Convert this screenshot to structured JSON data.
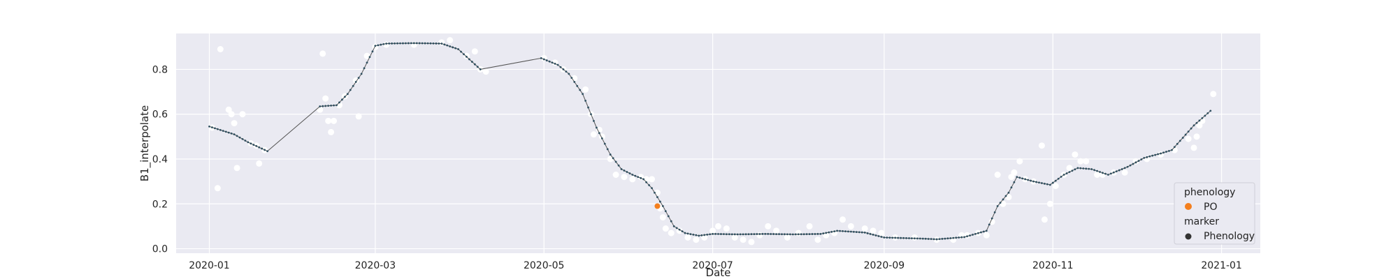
{
  "chart_data": {
    "type": "scatter",
    "title": "",
    "xlabel": "Date",
    "ylabel": "B1_interpolate",
    "x_type": "date",
    "xlim": [
      "2019-12-20",
      "2021-01-15"
    ],
    "ylim": [
      -0.02,
      0.96
    ],
    "grid": true,
    "x_ticks": [
      "2020-01-01",
      "2020-03-01",
      "2020-05-01",
      "2020-07-01",
      "2020-09-01",
      "2020-11-01",
      "2021-01-01"
    ],
    "x_tick_labels": [
      "2020-01",
      "2020-03",
      "2020-05",
      "2020-07",
      "2020-09",
      "2020-11",
      "2021-01"
    ],
    "y_ticks": [
      0.0,
      0.2,
      0.4,
      0.6,
      0.8
    ],
    "y_tick_labels": [
      "0.0",
      "0.2",
      "0.4",
      "0.6",
      "0.8"
    ],
    "series": [
      {
        "kind": "observations",
        "color": "#ffffff",
        "points": [
          [
            "2020-01-02",
            0.54
          ],
          [
            "2020-01-04",
            0.27
          ],
          [
            "2020-01-05",
            0.89
          ],
          [
            "2020-01-08",
            0.62
          ],
          [
            "2020-01-09",
            0.6
          ],
          [
            "2020-01-10",
            0.56
          ],
          [
            "2020-01-11",
            0.36
          ],
          [
            "2020-01-13",
            0.6
          ],
          [
            "2020-01-16",
            0.47
          ],
          [
            "2020-01-18",
            0.46
          ],
          [
            "2020-01-19",
            0.38
          ],
          [
            "2020-01-21",
            0.44
          ],
          [
            "2020-02-10",
            0.62
          ],
          [
            "2020-02-11",
            0.87
          ],
          [
            "2020-02-12",
            0.67
          ],
          [
            "2020-02-13",
            0.57
          ],
          [
            "2020-02-14",
            0.52
          ],
          [
            "2020-02-15",
            0.57
          ],
          [
            "2020-02-17",
            0.64
          ],
          [
            "2020-02-19",
            0.68
          ],
          [
            "2020-02-23",
            0.75
          ],
          [
            "2020-02-24",
            0.59
          ],
          [
            "2020-02-27",
            0.86
          ],
          [
            "2020-03-01",
            0.9
          ],
          [
            "2020-03-05",
            0.91
          ],
          [
            "2020-03-15",
            0.91
          ],
          [
            "2020-03-25",
            0.92
          ],
          [
            "2020-03-28",
            0.93
          ],
          [
            "2020-04-03",
            0.86
          ],
          [
            "2020-04-06",
            0.88
          ],
          [
            "2020-04-08",
            0.8
          ],
          [
            "2020-04-10",
            0.79
          ],
          [
            "2020-05-01",
            0.85
          ],
          [
            "2020-05-05",
            0.83
          ],
          [
            "2020-05-08",
            0.8
          ],
          [
            "2020-05-12",
            0.76
          ],
          [
            "2020-05-16",
            0.71
          ],
          [
            "2020-05-18",
            0.6
          ],
          [
            "2020-05-19",
            0.51
          ],
          [
            "2020-05-21",
            0.53
          ],
          [
            "2020-05-22",
            0.5
          ],
          [
            "2020-05-25",
            0.4
          ],
          [
            "2020-05-27",
            0.33
          ],
          [
            "2020-05-30",
            0.32
          ],
          [
            "2020-06-02",
            0.31
          ],
          [
            "2020-06-05",
            0.32
          ],
          [
            "2020-06-07",
            0.31
          ],
          [
            "2020-06-09",
            0.31
          ],
          [
            "2020-06-11",
            0.25
          ],
          [
            "2020-06-12",
            0.18
          ],
          [
            "2020-06-13",
            0.14
          ],
          [
            "2020-06-14",
            0.09
          ],
          [
            "2020-06-16",
            0.07
          ],
          [
            "2020-06-19",
            0.08
          ],
          [
            "2020-06-22",
            0.05
          ],
          [
            "2020-06-25",
            0.04
          ],
          [
            "2020-06-28",
            0.05
          ],
          [
            "2020-07-01",
            0.08
          ],
          [
            "2020-07-03",
            0.1
          ],
          [
            "2020-07-06",
            0.09
          ],
          [
            "2020-07-09",
            0.05
          ],
          [
            "2020-07-12",
            0.04
          ],
          [
            "2020-07-15",
            0.03
          ],
          [
            "2020-07-18",
            0.06
          ],
          [
            "2020-07-21",
            0.1
          ],
          [
            "2020-07-24",
            0.08
          ],
          [
            "2020-07-28",
            0.05
          ],
          [
            "2020-08-01",
            0.07
          ],
          [
            "2020-08-05",
            0.1
          ],
          [
            "2020-08-08",
            0.04
          ],
          [
            "2020-08-11",
            0.06
          ],
          [
            "2020-08-14",
            0.07
          ],
          [
            "2020-08-17",
            0.13
          ],
          [
            "2020-08-20",
            0.1
          ],
          [
            "2020-08-25",
            0.09
          ],
          [
            "2020-08-28",
            0.08
          ],
          [
            "2020-08-31",
            0.07
          ],
          [
            "2020-09-05",
            0.05
          ],
          [
            "2020-09-12",
            0.05
          ],
          [
            "2020-09-20",
            0.04
          ],
          [
            "2020-09-26",
            0.04
          ],
          [
            "2020-09-29",
            0.06
          ],
          [
            "2020-10-01",
            0.06
          ],
          [
            "2020-10-05",
            0.07
          ],
          [
            "2020-10-08",
            0.06
          ],
          [
            "2020-10-10",
            0.12
          ],
          [
            "2020-10-12",
            0.33
          ],
          [
            "2020-10-14",
            0.2
          ],
          [
            "2020-10-16",
            0.23
          ],
          [
            "2020-10-17",
            0.32
          ],
          [
            "2020-10-18",
            0.34
          ],
          [
            "2020-10-20",
            0.39
          ],
          [
            "2020-10-22",
            0.31
          ],
          [
            "2020-10-25",
            0.3
          ],
          [
            "2020-10-28",
            0.46
          ],
          [
            "2020-10-29",
            0.13
          ],
          [
            "2020-10-31",
            0.2
          ],
          [
            "2020-11-02",
            0.28
          ],
          [
            "2020-11-05",
            0.33
          ],
          [
            "2020-11-07",
            0.36
          ],
          [
            "2020-11-09",
            0.42
          ],
          [
            "2020-11-11",
            0.39
          ],
          [
            "2020-11-13",
            0.39
          ],
          [
            "2020-11-17",
            0.33
          ],
          [
            "2020-11-19",
            0.33
          ],
          [
            "2020-11-23",
            0.34
          ],
          [
            "2020-11-27",
            0.34
          ],
          [
            "2020-12-01",
            0.39
          ],
          [
            "2020-12-05",
            0.4
          ],
          [
            "2020-12-10",
            0.42
          ],
          [
            "2020-12-15",
            0.44
          ],
          [
            "2020-12-20",
            0.49
          ],
          [
            "2020-12-22",
            0.45
          ],
          [
            "2020-12-23",
            0.5
          ],
          [
            "2020-12-24",
            0.55
          ],
          [
            "2020-12-25",
            0.57
          ],
          [
            "2020-12-29",
            0.69
          ]
        ]
      },
      {
        "kind": "interpolated curve",
        "color": "#555555",
        "marker_color": "#2f4f5f",
        "points": [
          [
            "2020-01-01",
            0.545
          ],
          [
            "2020-01-10",
            0.51
          ],
          [
            "2020-01-15",
            0.475
          ],
          [
            "2020-01-22",
            0.435
          ],
          [
            "2020-02-10",
            0.635
          ],
          [
            "2020-02-16",
            0.64
          ],
          [
            "2020-02-20",
            0.69
          ],
          [
            "2020-02-25",
            0.78
          ],
          [
            "2020-03-01",
            0.905
          ],
          [
            "2020-03-05",
            0.915
          ],
          [
            "2020-03-15",
            0.917
          ],
          [
            "2020-03-25",
            0.915
          ],
          [
            "2020-03-31",
            0.89
          ],
          [
            "2020-04-08",
            0.8
          ],
          [
            "2020-04-30",
            0.85
          ],
          [
            "2020-05-06",
            0.82
          ],
          [
            "2020-05-10",
            0.78
          ],
          [
            "2020-05-15",
            0.69
          ],
          [
            "2020-05-20",
            0.54
          ],
          [
            "2020-05-25",
            0.42
          ],
          [
            "2020-05-29",
            0.355
          ],
          [
            "2020-06-02",
            0.33
          ],
          [
            "2020-06-06",
            0.31
          ],
          [
            "2020-06-09",
            0.27
          ],
          [
            "2020-06-13",
            0.19
          ],
          [
            "2020-06-17",
            0.1
          ],
          [
            "2020-06-21",
            0.07
          ],
          [
            "2020-06-26",
            0.058
          ],
          [
            "2020-07-01",
            0.066
          ],
          [
            "2020-07-10",
            0.064
          ],
          [
            "2020-07-20",
            0.066
          ],
          [
            "2020-07-30",
            0.064
          ],
          [
            "2020-08-09",
            0.066
          ],
          [
            "2020-08-15",
            0.08
          ],
          [
            "2020-08-25",
            0.072
          ],
          [
            "2020-09-01",
            0.05
          ],
          [
            "2020-09-15",
            0.045
          ],
          [
            "2020-09-20",
            0.042
          ],
          [
            "2020-09-30",
            0.052
          ],
          [
            "2020-10-08",
            0.08
          ],
          [
            "2020-10-12",
            0.19
          ],
          [
            "2020-10-16",
            0.25
          ],
          [
            "2020-10-19",
            0.32
          ],
          [
            "2020-10-25",
            0.3
          ],
          [
            "2020-10-31",
            0.285
          ],
          [
            "2020-11-05",
            0.33
          ],
          [
            "2020-11-10",
            0.36
          ],
          [
            "2020-11-15",
            0.355
          ],
          [
            "2020-11-21",
            0.33
          ],
          [
            "2020-11-28",
            0.365
          ],
          [
            "2020-12-04",
            0.405
          ],
          [
            "2020-12-10",
            0.425
          ],
          [
            "2020-12-14",
            0.44
          ],
          [
            "2020-12-22",
            0.55
          ],
          [
            "2020-12-28",
            0.615
          ]
        ]
      },
      {
        "kind": "phenology",
        "name": "PO",
        "color": "#f47f1e",
        "points": [
          [
            "2020-06-11",
            0.19
          ]
        ]
      }
    ],
    "legend": {
      "placement": "lower-right",
      "title_1": "phenology",
      "item_1": "PO",
      "item_1_color": "#f47f1e",
      "title_2": "marker",
      "item_2": "Phenology",
      "item_2_color": "#333333"
    },
    "colors": {
      "plot_background": "#eaeaf2",
      "grid": "#ffffff"
    }
  }
}
